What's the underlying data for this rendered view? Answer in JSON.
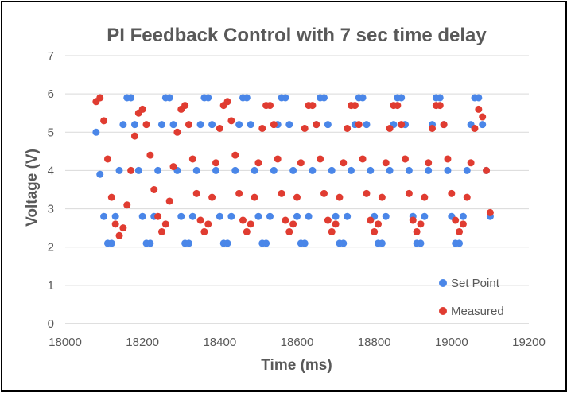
{
  "chart_data": {
    "type": "scatter",
    "title": "PI Feedback Control with 7 sec time delay",
    "xlabel": "Time (ms)",
    "ylabel": "Voltage (V)",
    "xlim": [
      18000,
      19200
    ],
    "ylim": [
      0,
      7
    ],
    "x_ticks": [
      18000,
      18200,
      18400,
      18600,
      18800,
      19000,
      19200
    ],
    "y_ticks": [
      0,
      1,
      2,
      3,
      4,
      5,
      6,
      7
    ],
    "grid": "horizontal",
    "legend_position": "bottom-right",
    "colors": {
      "set_point": "#4a86e8",
      "measured": "#e03c31"
    },
    "series": [
      {
        "name": "Set Point",
        "x": [
          18080,
          18090,
          18100,
          18110,
          18120,
          18130,
          18140,
          18150,
          18160,
          18170,
          18180,
          18190,
          18200,
          18210,
          18220,
          18230,
          18240,
          18250,
          18260,
          18270,
          18280,
          18290,
          18300,
          18310,
          18320,
          18330,
          18340,
          18350,
          18360,
          18370,
          18380,
          18390,
          18400,
          18410,
          18420,
          18430,
          18440,
          18450,
          18460,
          18470,
          18480,
          18490,
          18500,
          18510,
          18520,
          18530,
          18540,
          18550,
          18560,
          18570,
          18580,
          18590,
          18600,
          18610,
          18620,
          18630,
          18640,
          18650,
          18660,
          18670,
          18680,
          18690,
          18700,
          18710,
          18720,
          18730,
          18740,
          18750,
          18760,
          18770,
          18780,
          18790,
          18800,
          18810,
          18820,
          18830,
          18840,
          18850,
          18860,
          18870,
          18880,
          18890,
          18900,
          18910,
          18920,
          18930,
          18940,
          18950,
          18960,
          18970,
          18980,
          18990,
          19000,
          19010,
          19020,
          19030,
          19040,
          19050,
          19060,
          19070,
          19080,
          19090,
          19100
        ],
        "y": [
          5.0,
          3.9,
          2.8,
          2.1,
          2.1,
          2.8,
          4.0,
          5.2,
          5.9,
          5.9,
          5.2,
          4.0,
          2.8,
          2.1,
          2.1,
          2.8,
          4.0,
          5.2,
          5.9,
          5.9,
          5.2,
          4.0,
          2.8,
          2.1,
          2.1,
          2.8,
          4.0,
          5.2,
          5.9,
          5.9,
          5.2,
          4.0,
          2.8,
          2.1,
          2.1,
          2.8,
          4.0,
          5.2,
          5.9,
          5.9,
          5.2,
          4.0,
          2.8,
          2.1,
          2.1,
          2.8,
          4.0,
          5.2,
          5.9,
          5.9,
          5.2,
          4.0,
          2.8,
          2.1,
          2.1,
          2.8,
          4.0,
          5.2,
          5.9,
          5.9,
          5.2,
          4.0,
          2.8,
          2.1,
          2.1,
          2.8,
          4.0,
          5.2,
          5.9,
          5.9,
          5.2,
          4.0,
          2.8,
          2.1,
          2.1,
          2.8,
          4.0,
          5.2,
          5.9,
          5.9,
          5.2,
          4.0,
          2.8,
          2.1,
          2.1,
          2.8,
          4.0,
          5.2,
          5.9,
          5.9,
          5.2,
          4.0,
          2.8,
          2.1,
          2.1,
          2.8,
          4.0,
          5.2,
          5.9,
          5.9,
          5.2,
          4.0,
          2.8
        ]
      },
      {
        "name": "Measured",
        "x": [
          18080,
          18090,
          18100,
          18110,
          18120,
          18130,
          18140,
          18150,
          18160,
          18170,
          18180,
          18190,
          18200,
          18210,
          18220,
          18230,
          18240,
          18250,
          18260,
          18270,
          18280,
          18290,
          18300,
          18310,
          18320,
          18330,
          18340,
          18350,
          18360,
          18370,
          18380,
          18390,
          18400,
          18410,
          18420,
          18430,
          18440,
          18450,
          18460,
          18470,
          18480,
          18490,
          18500,
          18510,
          18520,
          18530,
          18540,
          18550,
          18560,
          18570,
          18580,
          18590,
          18600,
          18610,
          18620,
          18630,
          18640,
          18650,
          18660,
          18670,
          18680,
          18690,
          18700,
          18710,
          18720,
          18730,
          18740,
          18750,
          18760,
          18770,
          18780,
          18790,
          18800,
          18810,
          18820,
          18830,
          18840,
          18850,
          18860,
          18870,
          18880,
          18890,
          18900,
          18910,
          18920,
          18930,
          18940,
          18950,
          18960,
          18970,
          18980,
          18990,
          19000,
          19010,
          19020,
          19030,
          19040,
          19050,
          19060,
          19070,
          19080,
          19090,
          19100
        ],
        "y": [
          5.8,
          5.9,
          5.3,
          4.3,
          3.3,
          2.6,
          2.3,
          2.5,
          3.1,
          4.0,
          4.9,
          5.5,
          5.6,
          5.2,
          4.4,
          3.5,
          2.8,
          2.4,
          2.6,
          3.2,
          4.1,
          5.0,
          5.6,
          5.7,
          5.2,
          4.3,
          3.4,
          2.7,
          2.4,
          2.6,
          3.3,
          4.2,
          5.1,
          5.7,
          5.8,
          5.3,
          4.4,
          3.4,
          2.7,
          2.4,
          2.6,
          3.3,
          4.2,
          5.1,
          5.7,
          5.7,
          5.2,
          4.3,
          3.4,
          2.7,
          2.4,
          2.6,
          3.3,
          4.2,
          5.1,
          5.7,
          5.7,
          5.2,
          4.3,
          3.4,
          2.7,
          2.4,
          2.6,
          3.3,
          4.2,
          5.1,
          5.7,
          5.7,
          5.2,
          4.3,
          3.4,
          2.7,
          2.4,
          2.6,
          3.3,
          4.2,
          5.1,
          5.7,
          5.7,
          5.2,
          4.3,
          3.4,
          2.7,
          2.4,
          2.6,
          3.3,
          4.2,
          5.1,
          5.7,
          5.7,
          5.2,
          4.3,
          3.4,
          2.7,
          2.4,
          2.6,
          3.3,
          4.2,
          5.1,
          5.6,
          5.4,
          4.0,
          2.9
        ]
      }
    ]
  }
}
